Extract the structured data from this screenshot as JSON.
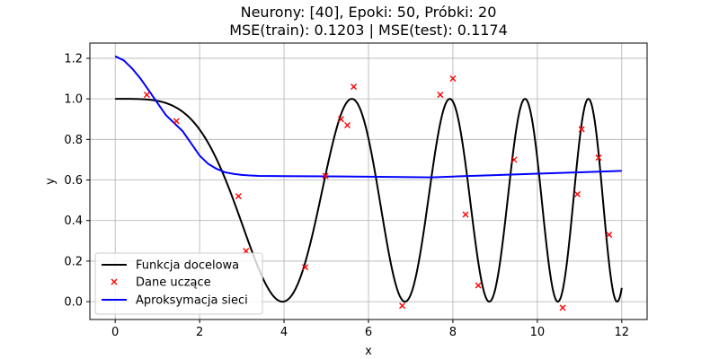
{
  "chart_data": {
    "type": "line",
    "title_line1": "Neurony: [40], Epoki: 50, Próbki: 20",
    "title_line2": "MSE(train): 0.1203 | MSE(test): 0.1174",
    "xlabel": "x",
    "ylabel": "y",
    "xlim": [
      -0.6,
      12.6
    ],
    "ylim": [
      -0.088,
      1.275
    ],
    "xticks": [
      0,
      2,
      4,
      6,
      8,
      10,
      12
    ],
    "xtick_labels": [
      "0",
      "2",
      "4",
      "6",
      "8",
      "10",
      "12"
    ],
    "yticks": [
      0.0,
      0.2,
      0.4,
      0.6,
      0.8,
      1.0,
      1.2
    ],
    "ytick_labels": [
      "0.0",
      "0.2",
      "0.4",
      "0.6",
      "0.8",
      "1.0",
      "1.2"
    ],
    "grid": true,
    "legend_position": "lower-left",
    "series": [
      {
        "name": "Funkcja docelowa",
        "kind": "line",
        "color": "#000000",
        "function": "(cos(0.2*x^2)+1)/2",
        "x_range": [
          0,
          12
        ]
      },
      {
        "name": "Dane uczące",
        "kind": "scatter",
        "marker": "x",
        "color": "#ff0000",
        "points": [
          [
            0.75,
            1.02
          ],
          [
            1.45,
            0.89
          ],
          [
            2.92,
            0.52
          ],
          [
            3.1,
            0.25
          ],
          [
            4.5,
            0.17
          ],
          [
            4.98,
            0.62
          ],
          [
            5.35,
            0.9
          ],
          [
            5.5,
            0.87
          ],
          [
            5.65,
            1.06
          ],
          [
            6.8,
            -0.02
          ],
          [
            7.7,
            1.02
          ],
          [
            8.0,
            1.1
          ],
          [
            8.3,
            0.43
          ],
          [
            8.6,
            0.08
          ],
          [
            9.45,
            0.7
          ],
          [
            10.6,
            -0.03
          ],
          [
            10.95,
            0.53
          ],
          [
            11.05,
            0.85
          ],
          [
            11.45,
            0.71
          ],
          [
            11.7,
            0.33
          ]
        ]
      },
      {
        "name": "Aproksymacja sieci",
        "kind": "line",
        "color": "#0000ff",
        "points": [
          [
            0.0,
            1.21
          ],
          [
            0.2,
            1.19
          ],
          [
            0.4,
            1.15
          ],
          [
            0.6,
            1.1
          ],
          [
            0.8,
            1.04
          ],
          [
            1.0,
            0.98
          ],
          [
            1.2,
            0.92
          ],
          [
            1.4,
            0.88
          ],
          [
            1.6,
            0.84
          ],
          [
            1.8,
            0.78
          ],
          [
            2.0,
            0.72
          ],
          [
            2.2,
            0.68
          ],
          [
            2.4,
            0.655
          ],
          [
            2.6,
            0.638
          ],
          [
            2.8,
            0.63
          ],
          [
            3.0,
            0.625
          ],
          [
            3.2,
            0.622
          ],
          [
            3.4,
            0.62
          ],
          [
            4.0,
            0.619
          ],
          [
            5.0,
            0.618
          ],
          [
            6.0,
            0.616
          ],
          [
            7.0,
            0.614
          ],
          [
            7.5,
            0.613
          ],
          [
            8.0,
            0.617
          ],
          [
            9.0,
            0.624
          ],
          [
            10.0,
            0.631
          ],
          [
            11.0,
            0.638
          ],
          [
            12.0,
            0.645
          ]
        ]
      }
    ]
  }
}
